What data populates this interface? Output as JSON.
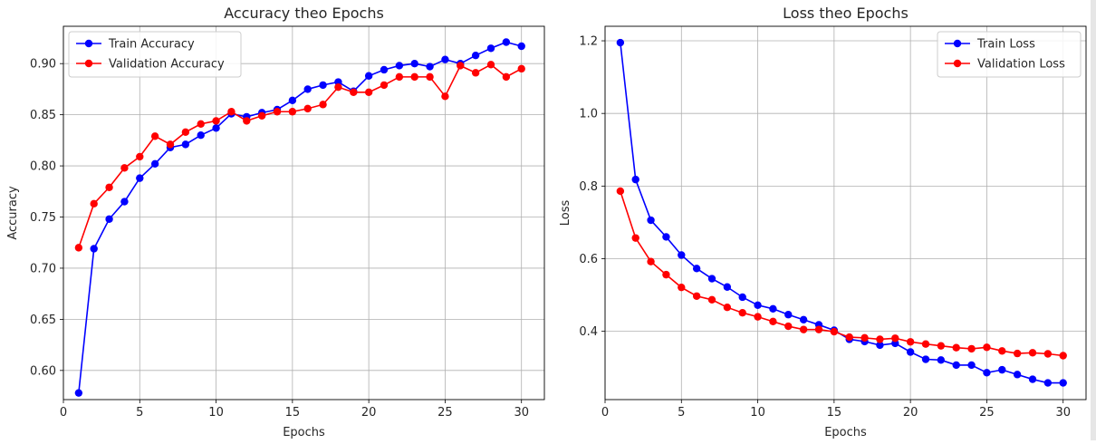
{
  "chart_data": [
    {
      "type": "line",
      "title": "Accuracy theo Epochs",
      "xlabel": "Epochs",
      "ylabel": "Accuracy",
      "xlim": [
        0.0,
        31.5
      ],
      "ylim": [
        0.5715,
        0.9365
      ],
      "xticks": [
        0,
        5,
        10,
        15,
        20,
        25,
        30
      ],
      "xtick_labels": [
        "0",
        "5",
        "10",
        "15",
        "20",
        "25",
        "30"
      ],
      "yticks": [
        0.6,
        0.65,
        0.7,
        0.75,
        0.8,
        0.85,
        0.9
      ],
      "ytick_labels": [
        "0.60",
        "0.65",
        "0.70",
        "0.75",
        "0.80",
        "0.85",
        "0.90"
      ],
      "grid": true,
      "legend": "upper-left",
      "x": [
        1,
        2,
        3,
        4,
        5,
        6,
        7,
        8,
        9,
        10,
        11,
        12,
        13,
        14,
        15,
        16,
        17,
        18,
        19,
        20,
        21,
        22,
        23,
        24,
        25,
        26,
        27,
        28,
        29,
        30
      ],
      "series": [
        {
          "name": "Train Accuracy",
          "color": "#0000ff",
          "values": [
            0.578,
            0.719,
            0.748,
            0.765,
            0.788,
            0.802,
            0.818,
            0.821,
            0.83,
            0.837,
            0.851,
            0.848,
            0.852,
            0.855,
            0.864,
            0.875,
            0.879,
            0.882,
            0.873,
            0.888,
            0.894,
            0.898,
            0.9,
            0.897,
            0.904,
            0.9,
            0.908,
            0.915,
            0.921,
            0.917
          ]
        },
        {
          "name": "Validation Accuracy",
          "color": "#ff0000",
          "values": [
            0.72,
            0.763,
            0.779,
            0.798,
            0.809,
            0.829,
            0.821,
            0.833,
            0.841,
            0.844,
            0.853,
            0.844,
            0.849,
            0.853,
            0.853,
            0.856,
            0.86,
            0.877,
            0.872,
            0.872,
            0.879,
            0.887,
            0.887,
            0.887,
            0.868,
            0.898,
            0.891,
            0.899,
            0.887,
            0.895
          ]
        }
      ]
    },
    {
      "type": "line",
      "title": "Loss theo Epochs",
      "xlabel": "Epochs",
      "ylabel": "Loss",
      "xlim": [
        0.0,
        31.5
      ],
      "ylim": [
        0.212,
        1.24
      ],
      "xticks": [
        0,
        5,
        10,
        15,
        20,
        25,
        30
      ],
      "xtick_labels": [
        "0",
        "5",
        "10",
        "15",
        "20",
        "25",
        "30"
      ],
      "yticks": [
        0.4,
        0.6,
        0.8,
        1.0,
        1.2
      ],
      "ytick_labels": [
        "0.4",
        "0.6",
        "0.8",
        "1.0",
        "1.2"
      ],
      "grid": true,
      "legend": "upper-right",
      "x": [
        1,
        2,
        3,
        4,
        5,
        6,
        7,
        8,
        9,
        10,
        11,
        12,
        13,
        14,
        15,
        16,
        17,
        18,
        19,
        20,
        21,
        22,
        23,
        24,
        25,
        26,
        27,
        28,
        29,
        30
      ],
      "series": [
        {
          "name": "Train Loss",
          "color": "#0000ff",
          "values": [
            1.195,
            0.818,
            0.706,
            0.66,
            0.61,
            0.573,
            0.545,
            0.522,
            0.494,
            0.472,
            0.462,
            0.446,
            0.432,
            0.418,
            0.403,
            0.378,
            0.372,
            0.362,
            0.367,
            0.343,
            0.323,
            0.321,
            0.307,
            0.307,
            0.286,
            0.294,
            0.281,
            0.268,
            0.258,
            0.258
          ]
        },
        {
          "name": "Validation Loss",
          "color": "#ff0000",
          "values": [
            0.786,
            0.657,
            0.592,
            0.556,
            0.521,
            0.497,
            0.487,
            0.466,
            0.451,
            0.44,
            0.427,
            0.414,
            0.405,
            0.405,
            0.399,
            0.384,
            0.382,
            0.378,
            0.381,
            0.371,
            0.365,
            0.36,
            0.355,
            0.352,
            0.356,
            0.346,
            0.339,
            0.341,
            0.338,
            0.333
          ]
        }
      ]
    }
  ]
}
